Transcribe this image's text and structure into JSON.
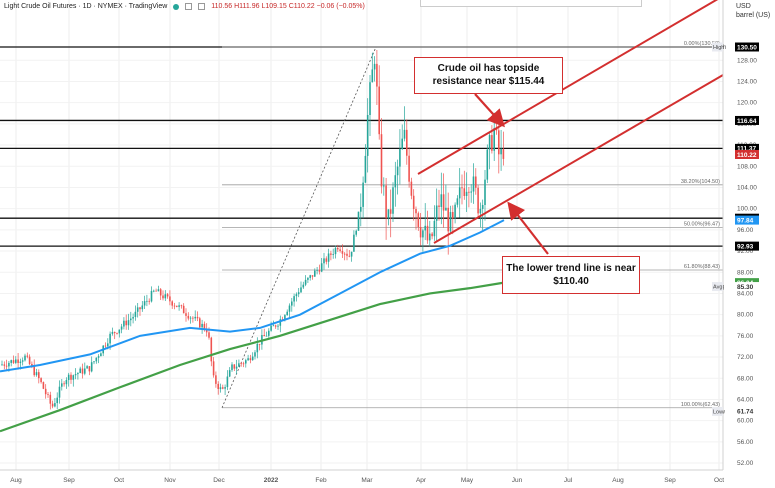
{
  "header": {
    "symbol": "Light Crude Oil Futures · 1D · NYMEX · TradingView",
    "ohlc": "110.56  H111.96  L109.15  C110.22  −0.06 (−0.05%)"
  },
  "price_axis": {
    "currency": "USD",
    "unit": "barrel (US)",
    "ticks": [
      "130.50",
      "128.00",
      "124.00",
      "120.00",
      "116.00",
      "112.00",
      "108.00",
      "104.00",
      "100.00",
      "96.00",
      "92.00",
      "88.00",
      "84.00",
      "80.00",
      "76.00",
      "72.00",
      "68.00",
      "64.00",
      "60.00",
      "56.00",
      "52.00"
    ],
    "badges": [
      {
        "label": "High",
        "value": "130.50"
      },
      {
        "label": "",
        "value": "116.64"
      },
      {
        "label": "",
        "value": "111.37"
      },
      {
        "label": "",
        "value": "110.22"
      },
      {
        "label": "",
        "value": "98.20"
      },
      {
        "label": "",
        "value": "97.84"
      },
      {
        "label": "",
        "value": "92.93"
      },
      {
        "label": "",
        "value": "86.04"
      },
      {
        "label": "Avg",
        "value": "85.30"
      },
      {
        "label": "Low",
        "value": "61.74"
      }
    ]
  },
  "time_axis": [
    "Aug",
    "Sep",
    "Oct",
    "Nov",
    "Dec",
    "2022",
    "Feb",
    "Mar",
    "Apr",
    "May",
    "Jun",
    "Jul",
    "Aug",
    "Sep",
    "Oct"
  ],
  "fib_levels": [
    {
      "label": "0.00%(130.50)",
      "price": 130.5
    },
    {
      "label": "38.20%(104.50)",
      "price": 104.5
    },
    {
      "label": "50.00%(96.47)",
      "price": 96.47
    },
    {
      "label": "61.80%(88.43)",
      "price": 88.43
    },
    {
      "label": "100.00%(62.43)",
      "price": 62.43
    }
  ],
  "horizontal_lines": [
    130.5,
    116.64,
    111.37,
    98.2,
    92.93
  ],
  "annotations": {
    "resistance": "Crude oil has topside resistance near $115.44",
    "trendline": "The lower trend line is near $110.40"
  },
  "colors": {
    "up": "#26a69a",
    "down": "#ef5350",
    "ma_fast": "#2196f3",
    "ma_slow": "#43a047",
    "channel": "#d32f2f",
    "badge_black": "#000000",
    "badge_red": "#d32f2f",
    "badge_blue": "#2196f3",
    "badge_green": "#43a047"
  }
}
